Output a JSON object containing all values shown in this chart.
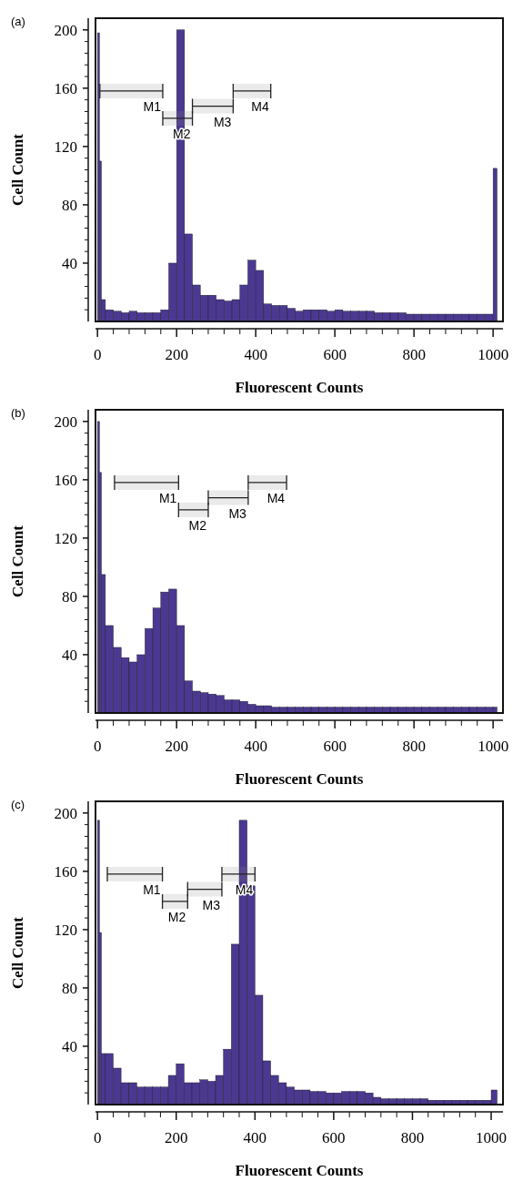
{
  "chart_data": [
    {
      "type": "histogram",
      "title": "(a)",
      "xlabel": "Fluorescent Counts",
      "ylabel": "Cell Count",
      "color": "#4b3891",
      "xlim": [
        -5,
        1025
      ],
      "ylim": [
        0,
        208
      ],
      "xticks": [
        0,
        {
          "value": 40,
          "label": null
        },
        {
          "value": 80,
          "label": null
        },
        {
          "value": 120,
          "label": null
        },
        {
          "value": 160,
          "label": null
        },
        200,
        {
          "value": 240,
          "label": null
        },
        {
          "value": 280,
          "label": null
        },
        {
          "value": 320,
          "label": null
        },
        {
          "value": 360,
          "label": null
        },
        400,
        {
          "value": 440,
          "label": null
        },
        {
          "value": 480,
          "label": null
        },
        {
          "value": 520,
          "label": null
        },
        {
          "value": 560,
          "label": null
        },
        600,
        {
          "value": 640,
          "label": null
        },
        {
          "value": 680,
          "label": null
        },
        {
          "value": 720,
          "label": null
        },
        {
          "value": 760,
          "label": null
        },
        800,
        {
          "value": 840,
          "label": null
        },
        {
          "value": 880,
          "label": null
        },
        {
          "value": 920,
          "label": null
        },
        {
          "value": 960,
          "label": null
        },
        1000
      ],
      "yticks": [
        {
          "value": 8,
          "label": null
        },
        {
          "value": 16,
          "label": null
        },
        {
          "value": 24,
          "label": null
        },
        {
          "value": 32,
          "label": null
        },
        40,
        {
          "value": 48,
          "label": null
        },
        {
          "value": 56,
          "label": null
        },
        {
          "value": 64,
          "label": null
        },
        {
          "value": 72,
          "label": null
        },
        80,
        {
          "value": 88,
          "label": null
        },
        {
          "value": 96,
          "label": null
        },
        {
          "value": 104,
          "label": null
        },
        {
          "value": 112,
          "label": null
        },
        120,
        {
          "value": 128,
          "label": null
        },
        {
          "value": 136,
          "label": null
        },
        {
          "value": 144,
          "label": null
        },
        {
          "value": 152,
          "label": null
        },
        160,
        {
          "value": 168,
          "label": null
        },
        {
          "value": 176,
          "label": null
        },
        {
          "value": 184,
          "label": null
        },
        {
          "value": 192,
          "label": null
        },
        200
      ],
      "bins": [
        0,
        5,
        10,
        20,
        40,
        60,
        80,
        100,
        120,
        140,
        160,
        180,
        200,
        220,
        240,
        260,
        280,
        300,
        320,
        340,
        360,
        380,
        400,
        420,
        440,
        460,
        480,
        500,
        520,
        540,
        560,
        580,
        600,
        620,
        640,
        660,
        680,
        700,
        720,
        740,
        760,
        780,
        800,
        820,
        840,
        860,
        880,
        900,
        920,
        940,
        960,
        980,
        1000,
        1010
      ],
      "values": [
        198,
        110,
        15,
        8,
        7,
        6,
        7,
        6,
        6,
        6,
        8,
        40,
        200,
        60,
        25,
        18,
        18,
        15,
        14,
        15,
        25,
        42,
        35,
        12,
        11,
        11,
        9,
        7,
        8,
        8,
        8,
        7,
        8,
        7,
        7,
        7,
        7,
        6,
        6,
        6,
        6,
        5,
        5,
        5,
        5,
        5,
        5,
        5,
        5,
        5,
        5,
        5,
        105
      ],
      "bands": [
        {
          "axis": "x",
          "from": 6,
          "to": 165,
          "label": "M1"
        },
        {
          "axis": "x",
          "from": 165,
          "to": 240,
          "label": "M2"
        },
        {
          "axis": "x",
          "from": 240,
          "to": 343,
          "label": "M3"
        },
        {
          "axis": "x",
          "from": 343,
          "to": 438,
          "label": "M4"
        }
      ]
    },
    {
      "type": "histogram",
      "title": "(b)",
      "xlabel": "Fluorescent Counts",
      "ylabel": "Cell Count",
      "color": "#4b3891",
      "xlim": [
        -5,
        1025
      ],
      "ylim": [
        0,
        208
      ],
      "xticks": [
        0,
        {
          "value": 40,
          "label": null
        },
        {
          "value": 80,
          "label": null
        },
        {
          "value": 120,
          "label": null
        },
        {
          "value": 160,
          "label": null
        },
        200,
        {
          "value": 240,
          "label": null
        },
        {
          "value": 280,
          "label": null
        },
        {
          "value": 320,
          "label": null
        },
        {
          "value": 360,
          "label": null
        },
        400,
        {
          "value": 440,
          "label": null
        },
        {
          "value": 480,
          "label": null
        },
        {
          "value": 520,
          "label": null
        },
        {
          "value": 560,
          "label": null
        },
        600,
        {
          "value": 640,
          "label": null
        },
        {
          "value": 680,
          "label": null
        },
        {
          "value": 720,
          "label": null
        },
        {
          "value": 760,
          "label": null
        },
        800,
        {
          "value": 840,
          "label": null
        },
        {
          "value": 880,
          "label": null
        },
        {
          "value": 920,
          "label": null
        },
        {
          "value": 960,
          "label": null
        },
        1000
      ],
      "yticks": [
        {
          "value": 8,
          "label": null
        },
        {
          "value": 16,
          "label": null
        },
        {
          "value": 24,
          "label": null
        },
        {
          "value": 32,
          "label": null
        },
        40,
        {
          "value": 48,
          "label": null
        },
        {
          "value": 56,
          "label": null
        },
        {
          "value": 64,
          "label": null
        },
        {
          "value": 72,
          "label": null
        },
        80,
        {
          "value": 88,
          "label": null
        },
        {
          "value": 96,
          "label": null
        },
        {
          "value": 104,
          "label": null
        },
        {
          "value": 112,
          "label": null
        },
        120,
        {
          "value": 128,
          "label": null
        },
        {
          "value": 136,
          "label": null
        },
        {
          "value": 144,
          "label": null
        },
        {
          "value": 152,
          "label": null
        },
        160,
        {
          "value": 168,
          "label": null
        },
        {
          "value": 176,
          "label": null
        },
        {
          "value": 184,
          "label": null
        },
        {
          "value": 192,
          "label": null
        },
        200
      ],
      "bins": [
        0,
        5,
        10,
        20,
        40,
        60,
        80,
        100,
        120,
        140,
        160,
        180,
        200,
        220,
        240,
        260,
        280,
        300,
        320,
        340,
        360,
        380,
        400,
        420,
        440,
        460,
        480,
        500,
        520,
        540,
        560,
        580,
        600,
        620,
        640,
        660,
        680,
        700,
        720,
        740,
        760,
        780,
        800,
        820,
        840,
        860,
        880,
        900,
        920,
        940,
        960,
        980,
        1000,
        1010
      ],
      "values": [
        200,
        165,
        95,
        60,
        45,
        38,
        35,
        40,
        58,
        72,
        83,
        85,
        60,
        22,
        15,
        14,
        13,
        12,
        9,
        9,
        8,
        6,
        5,
        5,
        4,
        4,
        4,
        4,
        4,
        4,
        4,
        4,
        4,
        4,
        4,
        4,
        4,
        4,
        4,
        4,
        4,
        4,
        4,
        4,
        4,
        4,
        4,
        4,
        4,
        4,
        4,
        4,
        4
      ],
      "bands": [
        {
          "axis": "x",
          "from": 43,
          "to": 205,
          "label": "M1"
        },
        {
          "axis": "x",
          "from": 205,
          "to": 280,
          "label": "M2"
        },
        {
          "axis": "x",
          "from": 280,
          "to": 381,
          "label": "M3"
        },
        {
          "axis": "x",
          "from": 381,
          "to": 478,
          "label": "M4"
        }
      ]
    },
    {
      "type": "histogram",
      "title": "(c)",
      "xlabel": "Fluorescent Counts",
      "ylabel": "Cell Count",
      "color": "#4b3891",
      "xlim": [
        -5,
        1030
      ],
      "ylim": [
        0,
        208
      ],
      "xticks": [
        0,
        {
          "value": 40,
          "label": null
        },
        {
          "value": 80,
          "label": null
        },
        {
          "value": 120,
          "label": null
        },
        {
          "value": 160,
          "label": null
        },
        200,
        {
          "value": 240,
          "label": null
        },
        {
          "value": 280,
          "label": null
        },
        {
          "value": 320,
          "label": null
        },
        {
          "value": 360,
          "label": null
        },
        400,
        {
          "value": 440,
          "label": null
        },
        {
          "value": 480,
          "label": null
        },
        {
          "value": 520,
          "label": null
        },
        {
          "value": 560,
          "label": null
        },
        600,
        {
          "value": 640,
          "label": null
        },
        {
          "value": 680,
          "label": null
        },
        {
          "value": 720,
          "label": null
        },
        {
          "value": 760,
          "label": null
        },
        800,
        {
          "value": 840,
          "label": null
        },
        {
          "value": 880,
          "label": null
        },
        {
          "value": 920,
          "label": null
        },
        {
          "value": 960,
          "label": null
        },
        1000
      ],
      "yticks": [
        {
          "value": 8,
          "label": null
        },
        {
          "value": 16,
          "label": null
        },
        {
          "value": 24,
          "label": null
        },
        {
          "value": 32,
          "label": null
        },
        40,
        {
          "value": 48,
          "label": null
        },
        {
          "value": 56,
          "label": null
        },
        {
          "value": 64,
          "label": null
        },
        {
          "value": 72,
          "label": null
        },
        80,
        {
          "value": 88,
          "label": null
        },
        {
          "value": 96,
          "label": null
        },
        {
          "value": 104,
          "label": null
        },
        {
          "value": 112,
          "label": null
        },
        120,
        {
          "value": 128,
          "label": null
        },
        {
          "value": 136,
          "label": null
        },
        {
          "value": 144,
          "label": null
        },
        {
          "value": 152,
          "label": null
        },
        160,
        {
          "value": 168,
          "label": null
        },
        {
          "value": 176,
          "label": null
        },
        {
          "value": 184,
          "label": null
        },
        {
          "value": 192,
          "label": null
        },
        200
      ],
      "bins": [
        0,
        5,
        10,
        20,
        40,
        60,
        80,
        100,
        120,
        140,
        160,
        180,
        200,
        220,
        240,
        260,
        280,
        300,
        320,
        340,
        360,
        380,
        400,
        420,
        440,
        460,
        480,
        500,
        520,
        540,
        560,
        580,
        600,
        620,
        640,
        660,
        680,
        700,
        720,
        740,
        760,
        780,
        800,
        820,
        840,
        860,
        880,
        900,
        920,
        940,
        960,
        980,
        1000,
        1015
      ],
      "values": [
        195,
        118,
        35,
        35,
        25,
        15,
        15,
        12,
        12,
        12,
        12,
        20,
        28,
        15,
        15,
        17,
        16,
        20,
        38,
        110,
        195,
        150,
        75,
        30,
        20,
        15,
        12,
        10,
        10,
        9,
        9,
        8,
        8,
        9,
        9,
        9,
        8,
        5,
        4,
        4,
        4,
        4,
        4,
        4,
        3,
        3,
        3,
        3,
        3,
        3,
        3,
        3,
        10
      ],
      "bands": [
        {
          "axis": "x",
          "from": 25,
          "to": 165,
          "label": "M1"
        },
        {
          "axis": "x",
          "from": 165,
          "to": 229,
          "label": "M2"
        },
        {
          "axis": "x",
          "from": 229,
          "to": 316,
          "label": "M3"
        },
        {
          "axis": "x",
          "from": 316,
          "to": 400,
          "label": "M4"
        }
      ]
    }
  ]
}
